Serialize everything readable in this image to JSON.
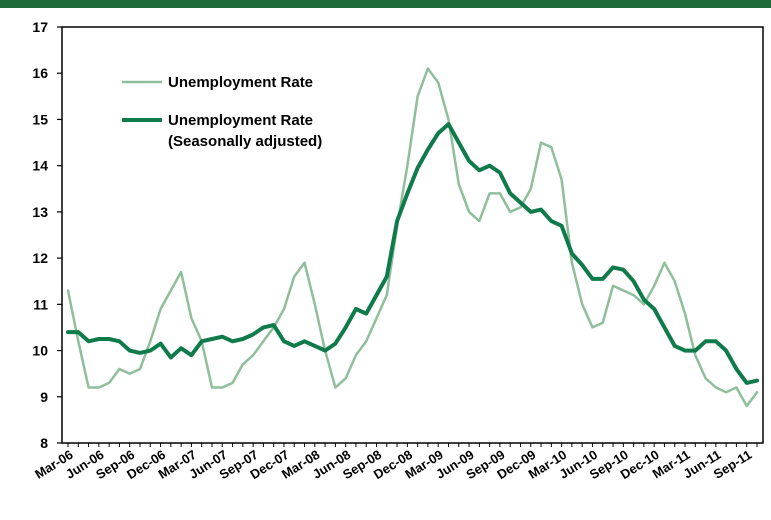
{
  "chart_data": {
    "type": "line",
    "title": "",
    "xlabel": "",
    "ylabel": "",
    "ylim": [
      8,
      17
    ],
    "yticks": [
      8,
      9,
      10,
      11,
      12,
      13,
      14,
      15,
      16,
      17
    ],
    "grid": false,
    "legend_position": "top-left",
    "x": [
      "Mar-06",
      "Apr-06",
      "May-06",
      "Jun-06",
      "Jul-06",
      "Aug-06",
      "Sep-06",
      "Oct-06",
      "Nov-06",
      "Dec-06",
      "Jan-07",
      "Feb-07",
      "Mar-07",
      "Apr-07",
      "May-07",
      "Jun-07",
      "Jul-07",
      "Aug-07",
      "Sep-07",
      "Oct-07",
      "Nov-07",
      "Dec-07",
      "Jan-08",
      "Feb-08",
      "Mar-08",
      "Apr-08",
      "May-08",
      "Jun-08",
      "Jul-08",
      "Aug-08",
      "Sep-08",
      "Oct-08",
      "Nov-08",
      "Dec-08",
      "Jan-09",
      "Feb-09",
      "Mar-09",
      "Apr-09",
      "May-09",
      "Jun-09",
      "Jul-09",
      "Aug-09",
      "Sep-09",
      "Oct-09",
      "Nov-09",
      "Dec-09",
      "Jan-10",
      "Feb-10",
      "Mar-10",
      "Apr-10",
      "May-10",
      "Jun-10",
      "Jul-10",
      "Aug-10",
      "Sep-10",
      "Oct-10",
      "Nov-10",
      "Dec-10",
      "Jan-11",
      "Feb-11",
      "Mar-11",
      "Apr-11",
      "May-11",
      "Jun-11",
      "Jul-11",
      "Aug-11",
      "Sep-11",
      "Oct-11"
    ],
    "tick_labels": [
      "Mar-06",
      "Jun-06",
      "Sep-06",
      "Dec-06",
      "Mar-07",
      "Jun-07",
      "Sep-07",
      "Dec-07",
      "Mar-08",
      "Jun-08",
      "Sep-08",
      "Dec-08",
      "Mar-09",
      "Jun-09",
      "Sep-09",
      "Dec-09",
      "Mar-10",
      "Jun-10",
      "Sep-10",
      "Dec-10",
      "Mar-11",
      "Jun-11",
      "Sep-11"
    ],
    "series": [
      {
        "name": "Unemployment Rate",
        "color": "#8fbf9a",
        "values": [
          11.3,
          10.2,
          9.2,
          9.2,
          9.3,
          9.6,
          9.5,
          9.6,
          10.2,
          10.9,
          11.3,
          11.7,
          10.7,
          10.2,
          9.2,
          9.2,
          9.3,
          9.7,
          9.9,
          10.2,
          10.5,
          10.9,
          11.6,
          11.9,
          11.0,
          10.0,
          9.2,
          9.4,
          9.9,
          10.2,
          10.7,
          11.2,
          12.7,
          14.0,
          15.5,
          16.1,
          15.8,
          15.0,
          13.6,
          13.0,
          12.8,
          13.4,
          13.4,
          13.0,
          13.1,
          13.5,
          14.5,
          14.4,
          13.7,
          11.9,
          11.0,
          10.5,
          10.6,
          11.4,
          11.3,
          11.2,
          11.0,
          11.4,
          11.9,
          11.5,
          10.8,
          9.9,
          9.4,
          9.2,
          9.1,
          9.2,
          8.8,
          9.1
        ]
      },
      {
        "name": "Unemployment Rate\n(Seasonally adjusted)",
        "name_lines": [
          "Unemployment Rate",
          "(Seasonally adjusted)"
        ],
        "color": "#0f7a4a",
        "values": [
          10.4,
          10.4,
          10.2,
          10.25,
          10.25,
          10.2,
          10.0,
          9.95,
          10.0,
          10.15,
          9.85,
          10.05,
          9.9,
          10.2,
          10.25,
          10.3,
          10.2,
          10.25,
          10.35,
          10.5,
          10.55,
          10.2,
          10.1,
          10.2,
          10.1,
          10.0,
          10.15,
          10.5,
          10.9,
          10.8,
          11.2,
          11.6,
          12.8,
          13.4,
          13.95,
          14.35,
          14.7,
          14.9,
          14.5,
          14.1,
          13.9,
          14.0,
          13.85,
          13.4,
          13.2,
          13.0,
          13.05,
          12.8,
          12.7,
          12.1,
          11.85,
          11.55,
          11.55,
          11.8,
          11.75,
          11.5,
          11.1,
          10.9,
          10.5,
          10.1,
          10.0,
          10.0,
          10.2,
          10.2,
          10.0,
          9.6,
          9.3,
          9.35
        ]
      }
    ]
  }
}
